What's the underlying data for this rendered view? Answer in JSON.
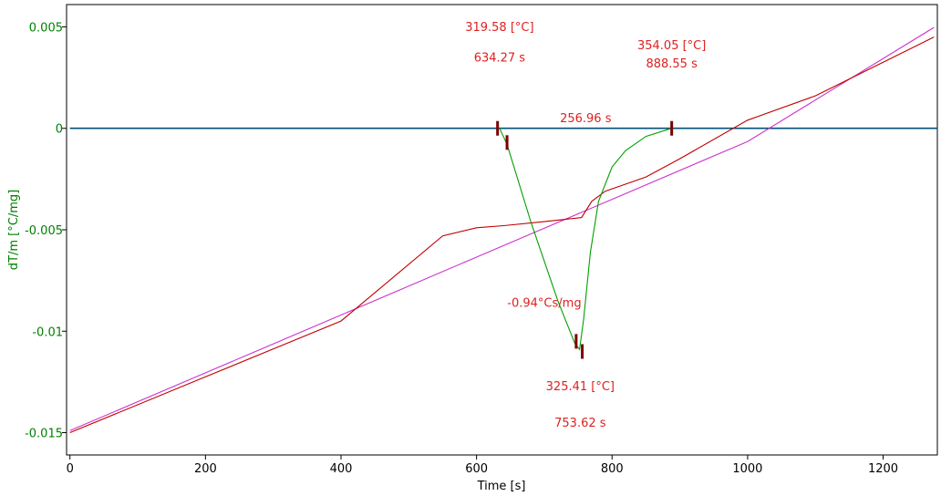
{
  "chart_data": {
    "type": "line",
    "xlabel": "Time [s]",
    "ylabel": "dT/m  [°C/mg]",
    "xlim": [
      -5,
      1280
    ],
    "ylim": [
      -0.0161,
      0.0061
    ],
    "x_ticks": [
      0,
      200,
      400,
      600,
      800,
      1000,
      1200
    ],
    "y_ticks": [
      0.005,
      0,
      -0.005,
      -0.01,
      -0.015
    ],
    "y_tick_labels": [
      "0.005",
      "0",
      "-0.005",
      "-0.01",
      "-0.015"
    ],
    "grid": false,
    "colors": {
      "axis_y": "#008000",
      "baseline": "#00507a",
      "magenta": "#cc33cc",
      "red": "#c00000",
      "green": "#00a000",
      "annotation": "#e02020",
      "marker": "#7a0000"
    },
    "series": [
      {
        "color": "#00507a",
        "x": [
          0,
          1280
        ],
        "y": [
          0.0,
          0.0
        ]
      },
      {
        "color": "#cc33cc",
        "x": [
          0,
          200,
          400,
          600,
          800,
          1000,
          1275
        ],
        "y": [
          -0.0149,
          -0.01205,
          -0.0092,
          -0.00635,
          -0.0035,
          -0.00065,
          0.00497
        ]
      },
      {
        "color": "#c00000",
        "x": [
          0,
          200,
          400,
          550,
          600,
          640,
          700,
          755,
          770,
          790,
          850,
          900,
          1000,
          1100,
          1275
        ],
        "y": [
          -0.015,
          -0.01225,
          -0.0095,
          -0.0053,
          -0.0049,
          -0.0048,
          -0.0046,
          -0.0044,
          -0.0036,
          -0.0031,
          -0.0024,
          -0.0015,
          0.0004,
          0.0016,
          0.0045
        ]
      },
      {
        "color": "#00a000",
        "x": [
          634,
          645,
          680,
          720,
          745,
          752,
          758,
          768,
          780,
          800,
          820,
          850,
          888
        ],
        "y": [
          0.0,
          -0.0008,
          -0.0046,
          -0.0085,
          -0.0106,
          -0.0109,
          -0.0094,
          -0.0061,
          -0.0036,
          -0.0019,
          -0.0011,
          -0.0004,
          0.0
        ]
      }
    ],
    "markers": [
      {
        "x": 631,
        "y": 0.0
      },
      {
        "x": 645,
        "y": -0.0007
      },
      {
        "x": 747,
        "y": -0.0105
      },
      {
        "x": 756,
        "y": -0.011
      },
      {
        "x": 888,
        "y": 0.0
      }
    ],
    "annotations": [
      {
        "line1": "319.58 [°C]",
        "line2": "634.27 s",
        "x": 634,
        "y": 0.0048,
        "y2": 0.0033
      },
      {
        "line1": "354.05 [°C]",
        "line2": "888.55 s",
        "x": 888,
        "y": 0.0039,
        "y2": 0.003
      },
      {
        "line1": "256.96 s",
        "x": 761,
        "y": 0.0003
      },
      {
        "line1": "-0.94°Cs/mg",
        "x": 700,
        "y": -0.0088
      },
      {
        "line1": "325.41 [°C]",
        "line2": "753.62 s",
        "x": 753,
        "y": -0.0129,
        "y2": -0.0147
      }
    ]
  }
}
